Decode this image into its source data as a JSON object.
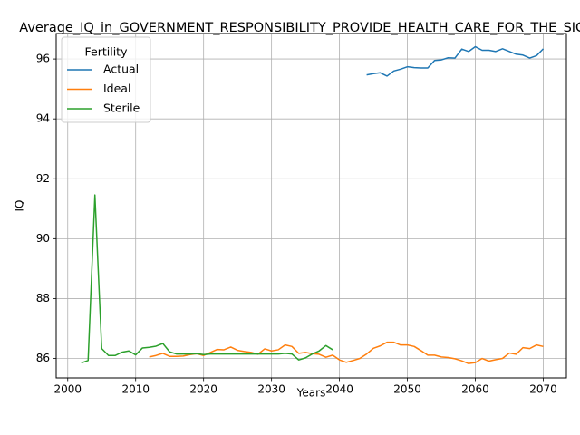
{
  "chart_data": {
    "type": "line",
    "title": "Average_IQ_in_GOVERNMENT_RESPONSIBILITY_PROVIDE_HEALTH_CARE_FOR_THE_SICK",
    "xlabel": "Years",
    "ylabel": "IQ",
    "xlim": [
      1998.3,
      2073.4
    ],
    "ylim": [
      85.35,
      96.85
    ],
    "xticks": [
      2000,
      2010,
      2020,
      2030,
      2040,
      2050,
      2060,
      2070
    ],
    "yticks": [
      86,
      88,
      90,
      92,
      94,
      96
    ],
    "grid": true,
    "legend": {
      "title": "Fertility",
      "position": "upper-left"
    },
    "series": [
      {
        "name": "Actual",
        "color": "#1f77b4",
        "x": [
          2044,
          2045,
          2046,
          2047,
          2048,
          2049,
          2050,
          2051,
          2052,
          2053,
          2054,
          2055,
          2056,
          2057,
          2058,
          2059,
          2060,
          2061,
          2062,
          2063,
          2064,
          2065,
          2066,
          2067,
          2068,
          2069,
          2070
        ],
        "y": [
          95.47,
          95.51,
          95.54,
          95.43,
          95.6,
          95.66,
          95.74,
          95.71,
          95.7,
          95.7,
          95.95,
          95.97,
          96.04,
          96.03,
          96.33,
          96.25,
          96.41,
          96.29,
          96.29,
          96.25,
          96.34,
          96.25,
          96.16,
          96.13,
          96.03,
          96.11,
          96.34
        ]
      },
      {
        "name": "Ideal",
        "color": "#ff7f0e",
        "x": [
          2012,
          2013,
          2014,
          2015,
          2016,
          2017,
          2018,
          2019,
          2020,
          2021,
          2022,
          2023,
          2024,
          2025,
          2026,
          2027,
          2028,
          2029,
          2030,
          2031,
          2032,
          2033,
          2034,
          2035,
          2036,
          2037,
          2038,
          2039,
          2040,
          2041,
          2042,
          2043,
          2044,
          2045,
          2046,
          2047,
          2048,
          2049,
          2050,
          2051,
          2052,
          2053,
          2054,
          2055,
          2056,
          2057,
          2058,
          2059,
          2060,
          2061,
          2062,
          2063,
          2064,
          2065,
          2066,
          2067,
          2068,
          2069,
          2070
        ],
        "y": [
          86.05,
          86.1,
          86.17,
          86.07,
          86.07,
          86.08,
          86.13,
          86.16,
          86.1,
          86.2,
          86.3,
          86.29,
          86.38,
          86.27,
          86.23,
          86.2,
          86.14,
          86.32,
          86.25,
          86.29,
          86.45,
          86.4,
          86.17,
          86.2,
          86.16,
          86.14,
          86.04,
          86.11,
          85.95,
          85.87,
          85.93,
          86.0,
          86.15,
          86.34,
          86.42,
          86.54,
          86.54,
          86.45,
          86.45,
          86.4,
          86.26,
          86.11,
          86.11,
          86.05,
          86.03,
          85.99,
          85.92,
          85.83,
          85.86,
          86.0,
          85.91,
          85.96,
          86.0,
          86.18,
          86.14,
          86.36,
          86.33,
          86.45,
          86.4
        ]
      },
      {
        "name": "Sterile",
        "color": "#2ca02c",
        "x": [
          2002,
          2003,
          2004,
          2005,
          2006,
          2007,
          2008,
          2009,
          2010,
          2011,
          2012,
          2013,
          2014,
          2015,
          2016,
          2017,
          2018,
          2019,
          2020,
          2021,
          2022,
          2023,
          2024,
          2025,
          2026,
          2027,
          2028,
          2029,
          2030,
          2031,
          2032,
          2033,
          2034,
          2035,
          2036,
          2037,
          2038,
          2039
        ],
        "y": [
          85.85,
          85.93,
          91.46,
          86.33,
          86.1,
          86.1,
          86.21,
          86.25,
          86.12,
          86.35,
          86.37,
          86.41,
          86.5,
          86.22,
          86.15,
          86.15,
          86.15,
          86.16,
          86.13,
          86.15,
          86.15,
          86.15,
          86.15,
          86.15,
          86.15,
          86.15,
          86.15,
          86.15,
          86.15,
          86.15,
          86.17,
          86.15,
          85.95,
          86.02,
          86.15,
          86.25,
          86.43,
          86.29
        ]
      }
    ]
  }
}
